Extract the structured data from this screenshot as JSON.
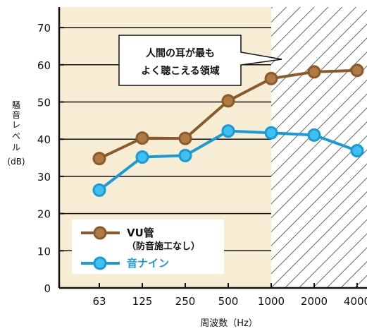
{
  "chart_data": {
    "type": "line",
    "categories": [
      "63",
      "125",
      "250",
      "500",
      "1000",
      "2000",
      "4000"
    ],
    "series": [
      {
        "name": "VU管",
        "name_sub": "（防音施工なし）",
        "color": "#8b5a2b",
        "marker_fill": "#b07a45",
        "values": [
          34.8,
          40.3,
          40.2,
          50.3,
          56.3,
          58.1,
          58.5
        ]
      },
      {
        "name": "音ナイン",
        "color": "#1a9ad6",
        "marker_fill": "#3fc0f0",
        "values": [
          26.3,
          35.2,
          35.6,
          42.2,
          41.7,
          41.1,
          36.9
        ]
      }
    ],
    "yticks": [
      "0",
      "10",
      "20",
      "30",
      "40",
      "50",
      "60",
      "70"
    ],
    "ylim": [
      0,
      75
    ],
    "ylabel_lines": [
      "騒",
      "音",
      "レ",
      "ベ",
      "ル"
    ],
    "ylabel_unit": "(dB)",
    "xlabel": "周波数（Hz）",
    "annotation": {
      "line1": "人間の耳が最も",
      "line2": "よく聴こえる領域"
    },
    "shaded_from_category": "1000",
    "legend_position": "bottom-left",
    "background_color": "#f7edd5",
    "hatch_color": "#666666"
  }
}
